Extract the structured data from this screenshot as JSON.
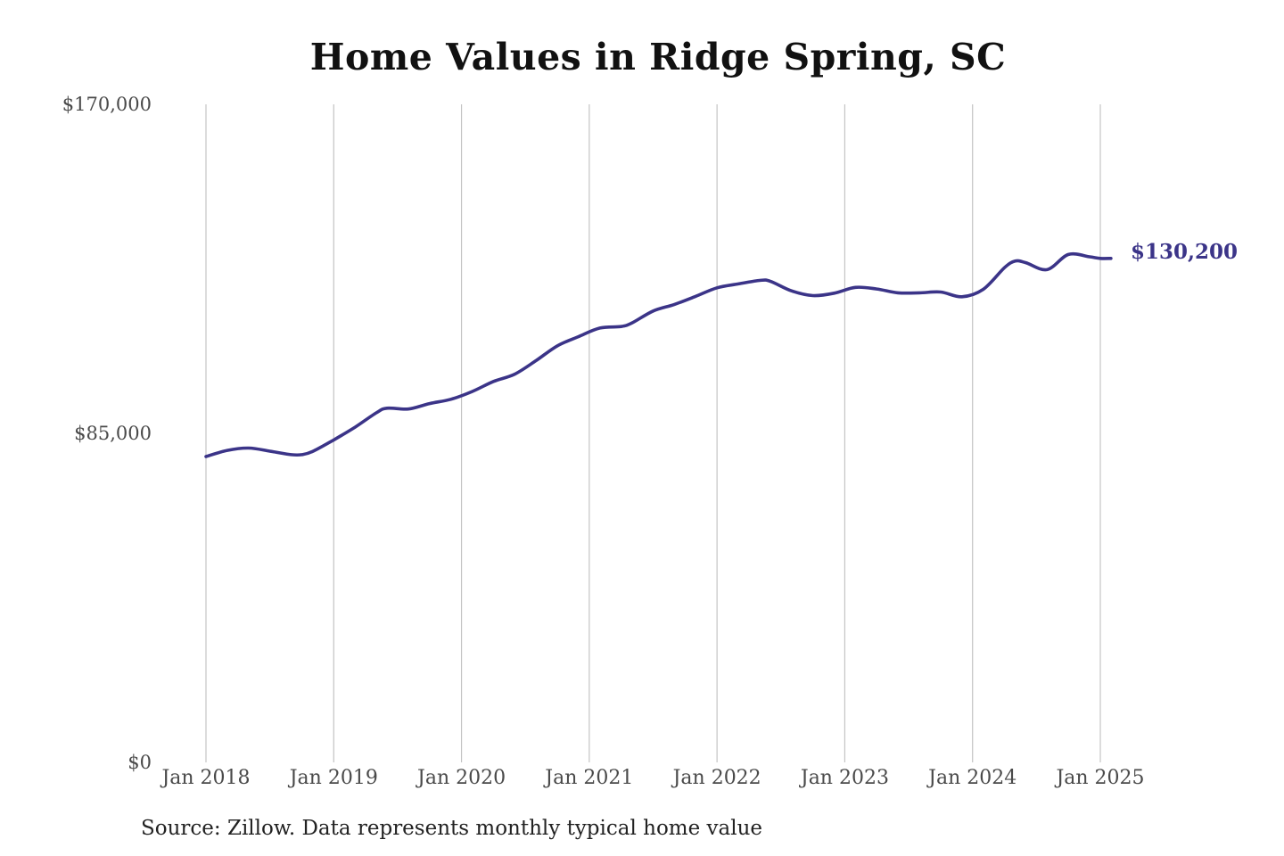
{
  "chart_data": {
    "type": "line",
    "title": "Home Values in Ridge Spring, SC",
    "xlabel": "",
    "ylabel": "",
    "ylim": [
      0,
      170000
    ],
    "y_ticks": [
      {
        "value": 0,
        "label": "$0"
      },
      {
        "value": 85000,
        "label": "$85,000"
      },
      {
        "value": 170000,
        "label": "$170,000"
      }
    ],
    "x_ticks": [
      {
        "date": "2018-01",
        "label": "Jan 2018"
      },
      {
        "date": "2019-01",
        "label": "Jan 2019"
      },
      {
        "date": "2020-01",
        "label": "Jan 2020"
      },
      {
        "date": "2021-01",
        "label": "Jan 2021"
      },
      {
        "date": "2022-01",
        "label": "Jan 2022"
      },
      {
        "date": "2023-01",
        "label": "Jan 2023"
      },
      {
        "date": "2024-01",
        "label": "Jan 2024"
      },
      {
        "date": "2025-01",
        "label": "Jan 2025"
      }
    ],
    "x_range": [
      "2018-01",
      "2025-01"
    ],
    "grid": "vertical",
    "line_color": "#3b3488",
    "end_label": "$130,200",
    "series": [
      {
        "x": [
          "2018-01",
          "2018-03",
          "2018-05",
          "2018-07",
          "2018-09",
          "2018-10",
          "2018-11",
          "2019-01",
          "2019-03",
          "2019-05",
          "2019-06",
          "2019-08",
          "2019-10",
          "2019-12",
          "2020-02",
          "2020-04",
          "2020-06",
          "2020-08",
          "2020-10",
          "2020-12",
          "2021-02",
          "2021-04",
          "2021-05",
          "2021-07",
          "2021-09",
          "2021-11",
          "2022-01",
          "2022-03",
          "2022-05",
          "2022-06",
          "2022-08",
          "2022-10",
          "2022-12",
          "2023-02",
          "2023-04",
          "2023-06",
          "2023-08",
          "2023-10",
          "2023-12",
          "2024-02",
          "2024-04",
          "2024-05",
          "2024-06",
          "2024-08",
          "2024-10",
          "2024-12",
          "2025-01",
          "2025-02"
        ],
        "values": [
          79000,
          80600,
          81200,
          80400,
          79500,
          79500,
          80300,
          83300,
          86600,
          90300,
          91500,
          91300,
          92700,
          93800,
          95800,
          98400,
          100300,
          103800,
          107600,
          110000,
          112200,
          112600,
          113500,
          116600,
          118300,
          120400,
          122600,
          123600,
          124500,
          124300,
          121800,
          120600,
          121200,
          122700,
          122300,
          121300,
          121300,
          121500,
          120300,
          122200,
          127800,
          129500,
          129100,
          127300,
          131200,
          130600,
          130200,
          130200
        ]
      }
    ]
  },
  "source": "Source: Zillow. Data represents monthly typical home value"
}
